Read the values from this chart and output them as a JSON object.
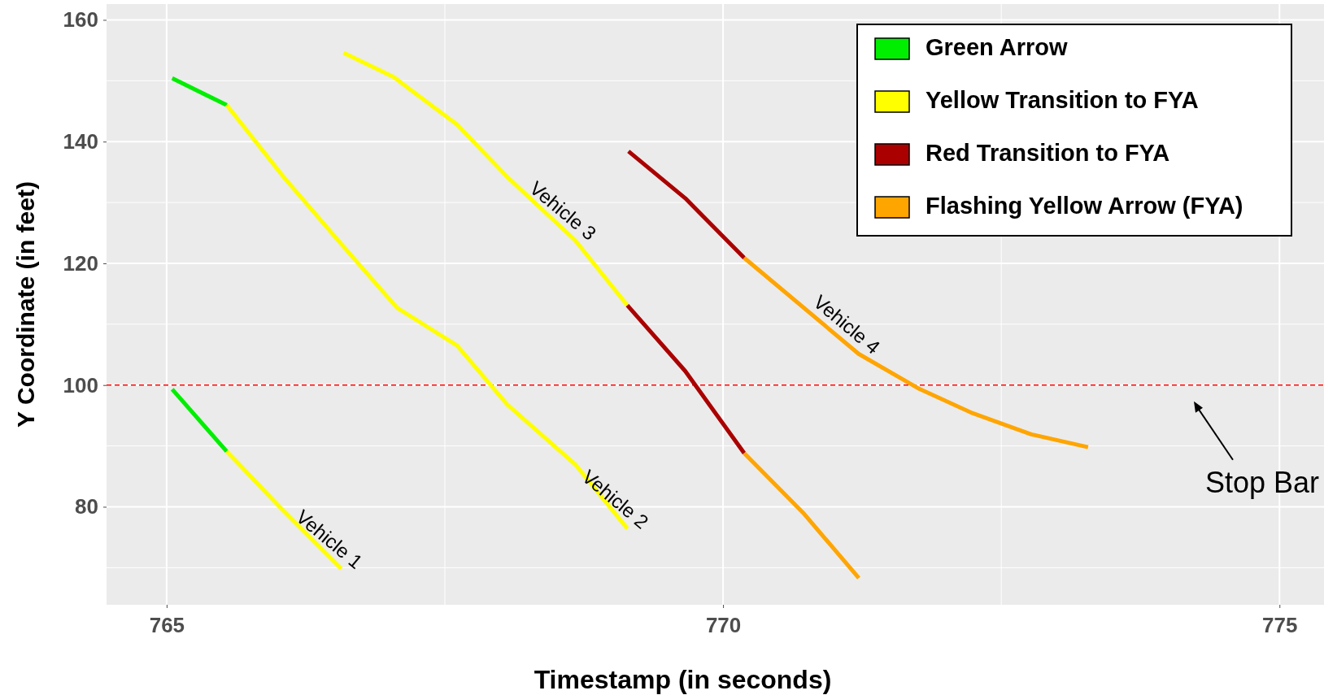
{
  "chart_data": {
    "type": "line",
    "xlabel": "Timestamp (in seconds)",
    "ylabel": "Y Coordinate (in feet)",
    "xlim": [
      764.46,
      775.4
    ],
    "ylim": [
      63.9,
      162.6
    ],
    "xticks": [
      765,
      770,
      775
    ],
    "yticks": [
      80,
      100,
      120,
      140,
      160
    ],
    "grid": true,
    "legend": "top right",
    "line_style": "solid",
    "marker": "none",
    "series": [
      {
        "name": "Green Arrow",
        "color": "#00ee00",
        "x": [
          765.05,
          765.54
        ],
        "values": [
          99.3,
          89.1
        ]
      },
      {
        "name": "Yellow Transition to FYA",
        "color": "#ffff00",
        "x": [
          765.54,
          766.01,
          766.57
        ],
        "values": [
          89.1,
          80.1,
          69.8
        ]
      },
      {
        "color": "#00ee00",
        "x": [
          765.05,
          765.54
        ],
        "values": [
          150.4,
          146.0
        ]
      },
      {
        "color": "#ffff00",
        "x": [
          765.54,
          766.05,
          766.54,
          767.07,
          767.61,
          768.06,
          768.67,
          769.14
        ],
        "values": [
          146.0,
          134.2,
          123.8,
          112.7,
          106.5,
          96.8,
          87.0,
          76.4
        ]
      },
      {
        "color": "#ffff00",
        "x": [
          766.59,
          767.04,
          767.61,
          768.06,
          768.67,
          769.14
        ],
        "values": [
          154.6,
          150.6,
          142.8,
          134.2,
          123.8,
          113.1
        ]
      },
      {
        "name": "Red Transition to FYA",
        "color": "#aa0000",
        "x": [
          769.14,
          769.66,
          770.19
        ],
        "values": [
          113.1,
          102.3,
          88.8
        ]
      },
      {
        "name": "Flashing Yellow Arrow (FYA)",
        "color": "#ffa500",
        "x": [
          770.19,
          770.72,
          771.22
        ],
        "values": [
          88.8,
          79.0,
          68.3
        ]
      },
      {
        "color": "#aa0000",
        "x": [
          769.15,
          769.66,
          770.19
        ],
        "values": [
          138.4,
          130.7,
          120.9
        ]
      },
      {
        "color": "#ffa500",
        "x": [
          770.19,
          771.22,
          771.75,
          772.24,
          772.77,
          773.28
        ],
        "values": [
          120.9,
          105.1,
          99.5,
          95.4,
          91.9,
          89.8
        ]
      }
    ],
    "annotations": [
      {
        "text": "Vehicle 1",
        "x": 766.57,
        "y": 69.8
      },
      {
        "text": "Vehicle 2",
        "x": 769.14,
        "y": 76.4
      },
      {
        "text": "Vehicle 3",
        "x": 768.67,
        "y": 123.8
      },
      {
        "text": "Vehicle 4",
        "x": 771.22,
        "y": 105.1
      }
    ],
    "ref_lines": [
      {
        "axis": "y",
        "value": 100,
        "label": "Stop Bar",
        "color": "#ff0000",
        "line_style": "dashed"
      }
    ]
  }
}
